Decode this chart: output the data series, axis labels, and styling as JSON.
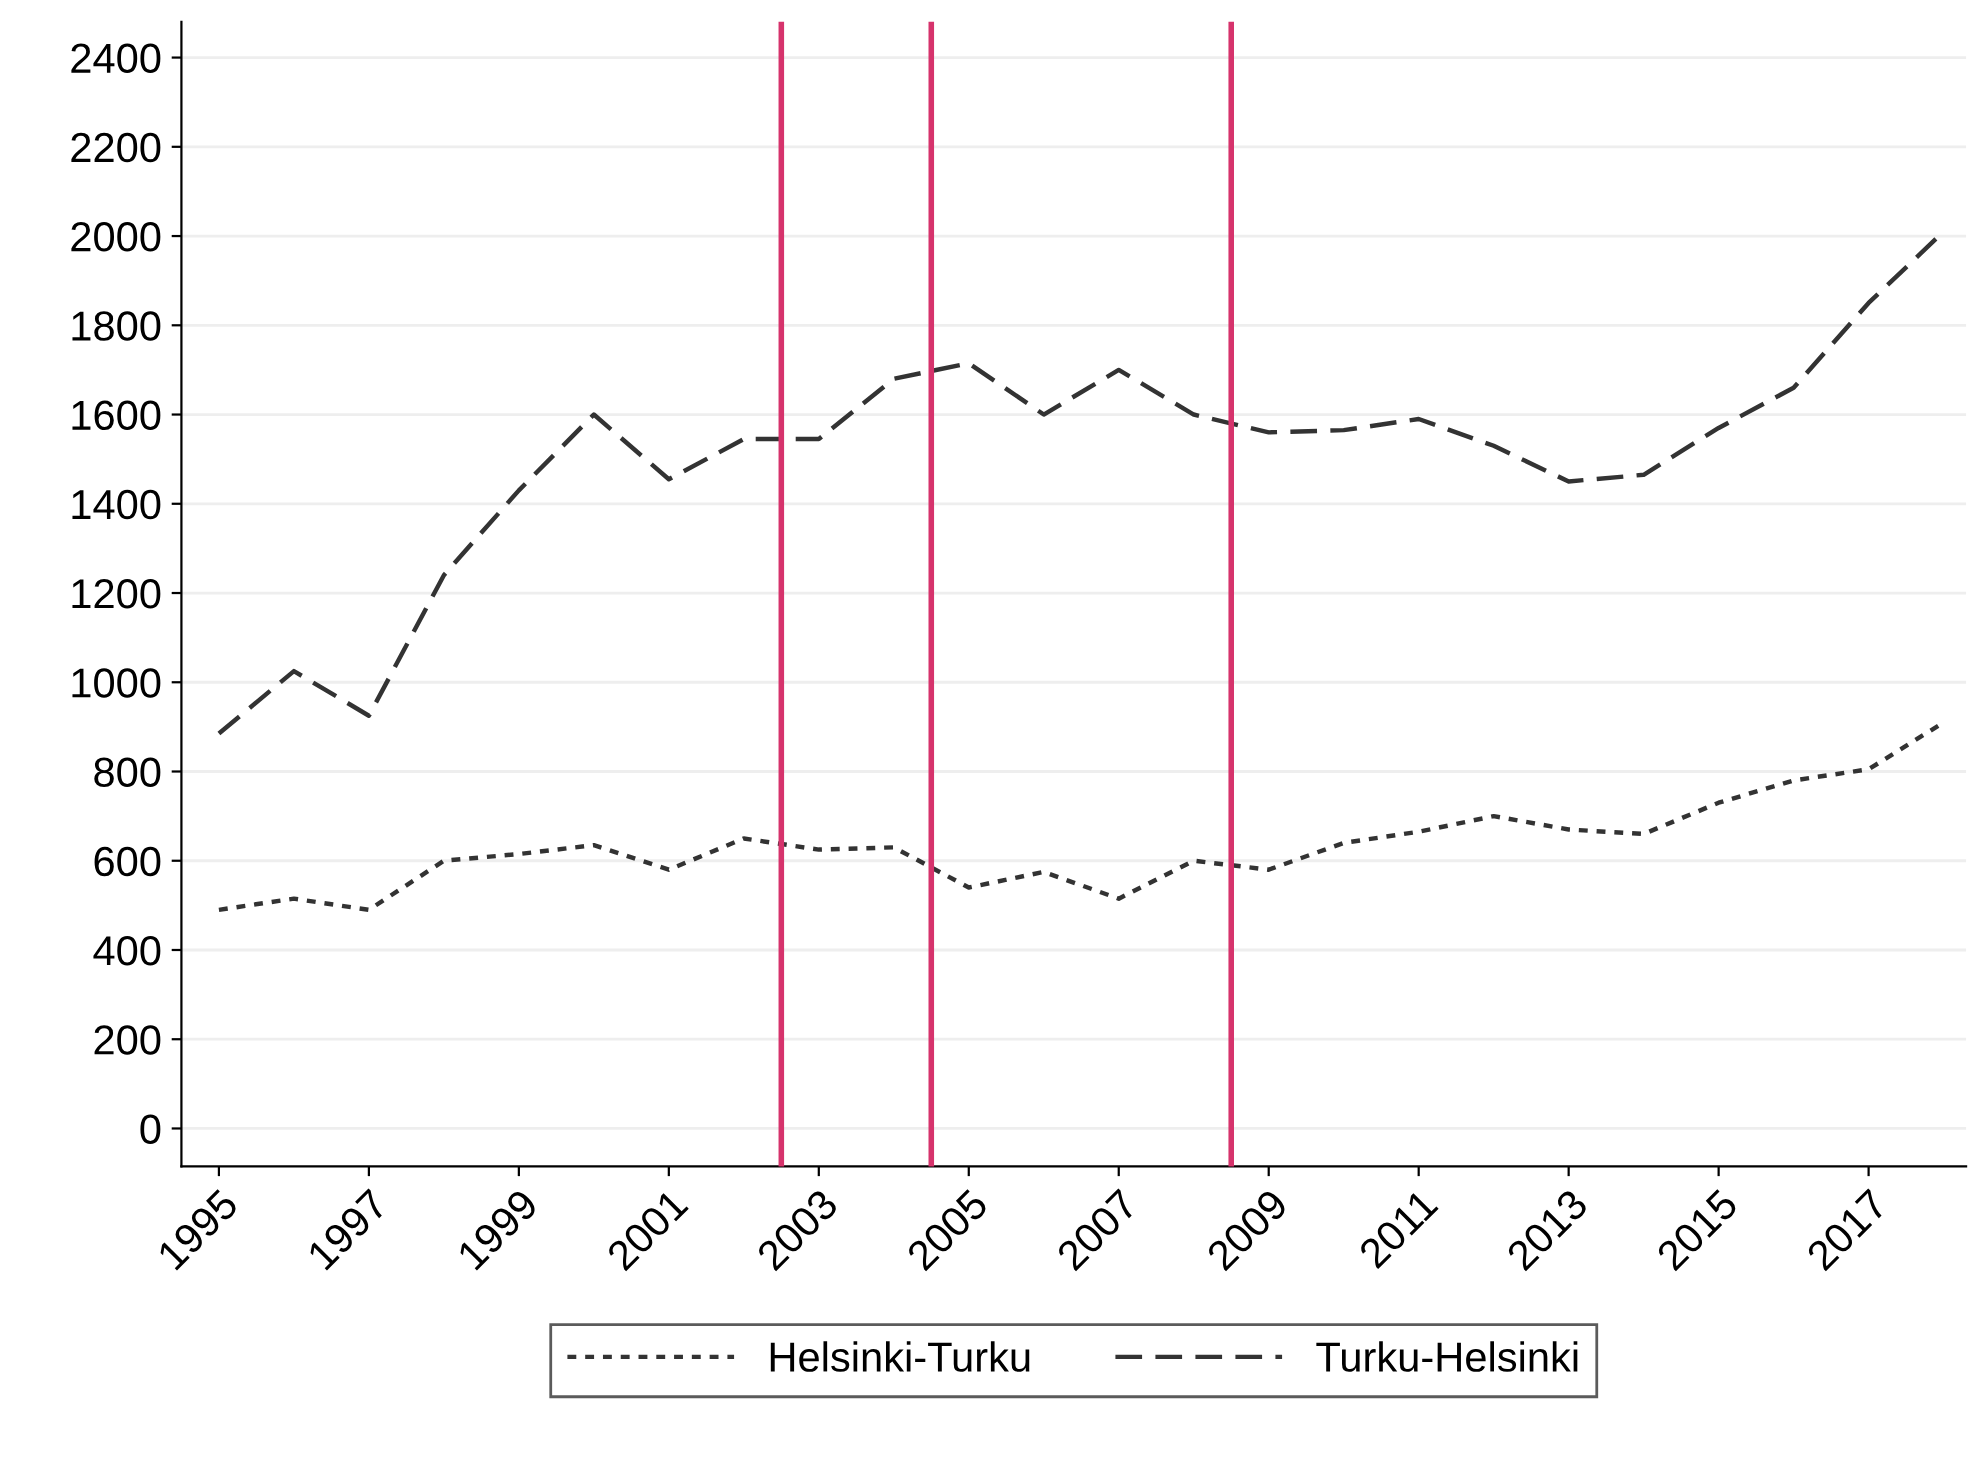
{
  "chart_data": {
    "type": "line",
    "x": [
      1995,
      1996,
      1997,
      1998,
      1999,
      2000,
      2001,
      2002,
      2003,
      2004,
      2005,
      2006,
      2007,
      2008,
      2009,
      2010,
      2011,
      2012,
      2013,
      2014,
      2015,
      2016,
      2017,
      2018
    ],
    "series": [
      {
        "name": "Helsinki-Turku",
        "color": "#333333",
        "line_style": "dotted",
        "values": [
          490,
          515,
          490,
          600,
          615,
          635,
          580,
          650,
          625,
          630,
          540,
          575,
          515,
          600,
          580,
          640,
          665,
          700,
          670,
          660,
          730,
          780,
          805,
          910
        ]
      },
      {
        "name": "Turku-Helsinki",
        "color": "#333333",
        "line_style": "dashed",
        "values": [
          885,
          1025,
          925,
          1240,
          1430,
          1600,
          1455,
          1545,
          1545,
          1680,
          1715,
          1600,
          1700,
          1600,
          1560,
          1565,
          1590,
          1530,
          1450,
          1465,
          1570,
          1660,
          1850,
          2010
        ]
      }
    ],
    "xlim": [
      1994.5,
      2018.3
    ],
    "xticks": [
      1995,
      1997,
      1999,
      2001,
      2003,
      2005,
      2007,
      2009,
      2011,
      2013,
      2015,
      2017
    ],
    "ylim": [
      -85,
      2480
    ],
    "yticks": [
      0,
      200,
      400,
      600,
      800,
      1000,
      1200,
      1400,
      1600,
      1800,
      2000,
      2200,
      2400
    ],
    "ref_lines": [
      {
        "axis": "x",
        "value": 2002.5,
        "color": "#d6336c"
      },
      {
        "axis": "x",
        "value": 2004.5,
        "color": "#d6336c"
      },
      {
        "axis": "x",
        "value": 2008.5,
        "color": "#d6336c"
      }
    ],
    "grid": "y",
    "legend": "bottom"
  }
}
